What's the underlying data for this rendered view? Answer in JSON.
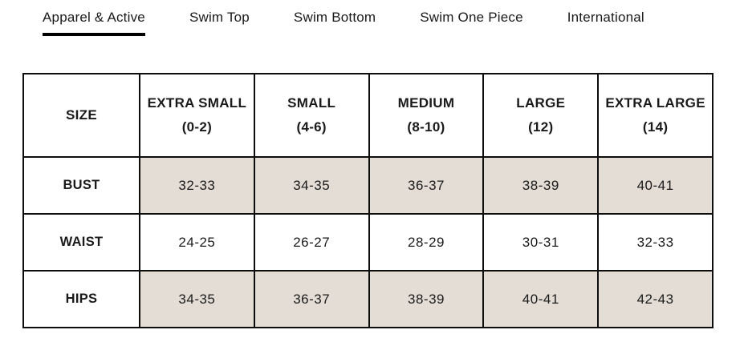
{
  "tabs": [
    {
      "label": "Apparel & Active",
      "active": true
    },
    {
      "label": "Swim Top",
      "active": false
    },
    {
      "label": "Swim Bottom",
      "active": false
    },
    {
      "label": "Swim One Piece",
      "active": false
    },
    {
      "label": "International",
      "active": false
    }
  ],
  "size_chart": {
    "corner_label": "SIZE",
    "columns": [
      {
        "name": "EXTRA SMALL",
        "range": "(0-2)"
      },
      {
        "name": "SMALL",
        "range": "(4-6)"
      },
      {
        "name": "MEDIUM",
        "range": "(8-10)"
      },
      {
        "name": "LARGE",
        "range": "(12)"
      },
      {
        "name": "EXTRA LARGE",
        "range": "(14)"
      }
    ],
    "rows": [
      {
        "label": "BUST",
        "shaded": true,
        "values": [
          "32-33",
          "34-35",
          "36-37",
          "38-39",
          "40-41"
        ]
      },
      {
        "label": "WAIST",
        "shaded": false,
        "values": [
          "24-25",
          "26-27",
          "28-29",
          "30-31",
          "32-33"
        ]
      },
      {
        "label": "HIPS",
        "shaded": true,
        "values": [
          "34-35",
          "36-37",
          "38-39",
          "40-41",
          "42-43"
        ]
      }
    ]
  },
  "colors": {
    "shaded_cell": "#e4ddd6",
    "border": "#0d0d0d",
    "text": "#1a1a1a"
  }
}
